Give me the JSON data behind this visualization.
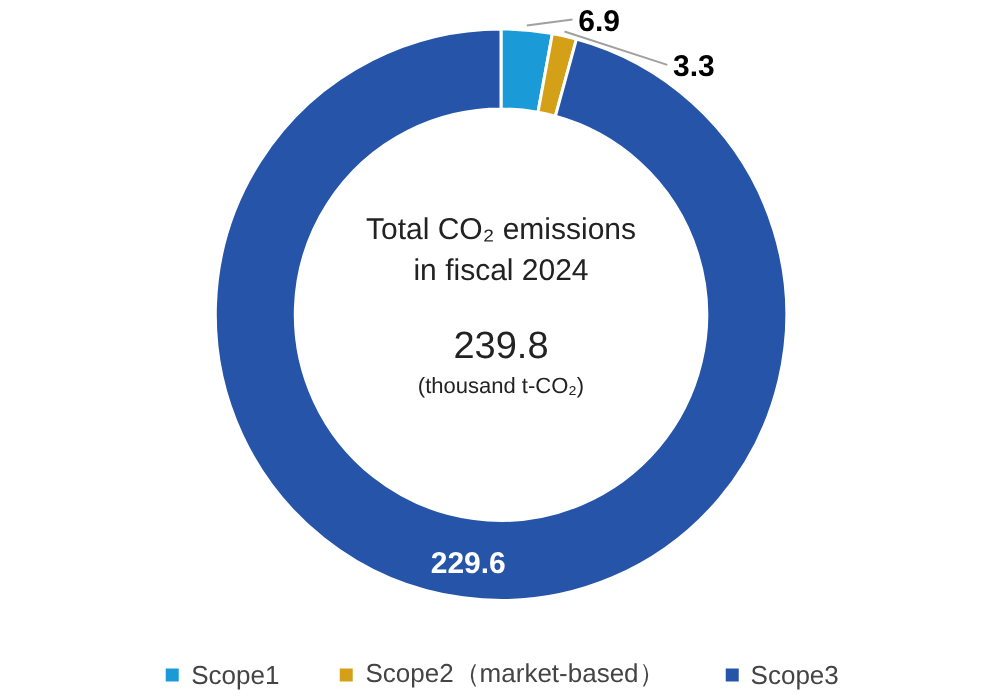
{
  "chart_data": {
    "type": "donut",
    "categories": [
      "Scope1",
      "Scope2（market-based）",
      "Scope3"
    ],
    "values": [
      6.9,
      3.3,
      229.6
    ],
    "colors": [
      "#1a9bd7",
      "#d4a017",
      "#2554a8"
    ],
    "data_labels": true,
    "legend": "bottom",
    "annotations": [
      "Total CO₂ emissions",
      "in fiscal 2024",
      "239.8",
      "(thousand t-CO₂)"
    ]
  }
}
